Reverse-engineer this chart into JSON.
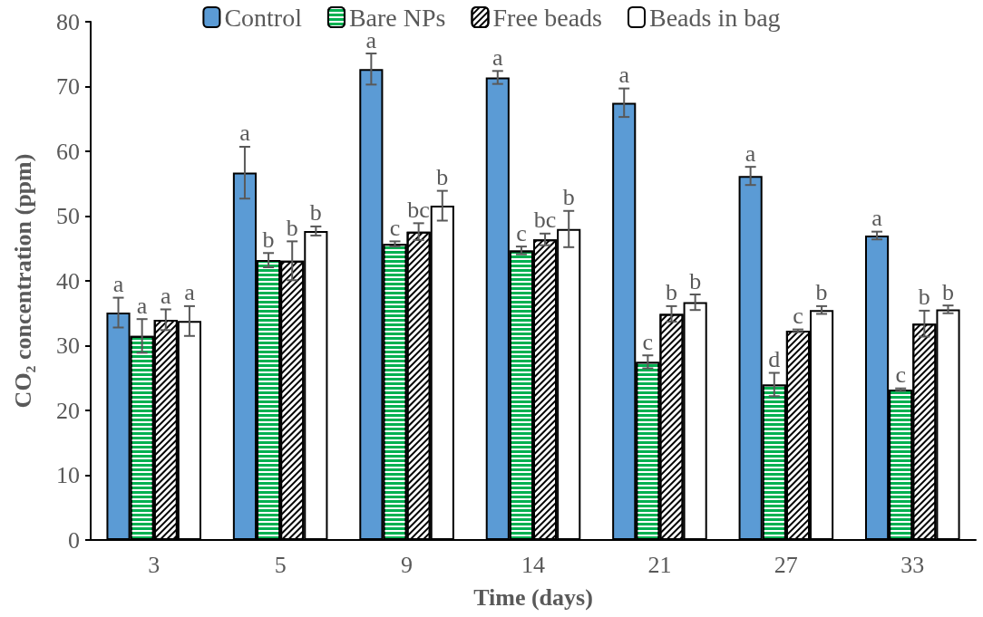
{
  "chart_data": {
    "type": "bar",
    "xlabel": "Time (days)",
    "ylabel": "CO₂ concentration (ppm)",
    "categories": [
      "3",
      "5",
      "9",
      "14",
      "21",
      "27",
      "33"
    ],
    "series": [
      {
        "name": "Control",
        "color": "#5b9bd5",
        "values": [
          35.1,
          56.7,
          72.7,
          71.4,
          67.5,
          56.2,
          47.0
        ],
        "errors": [
          2.3,
          4.0,
          2.4,
          1.0,
          2.2,
          1.4,
          0.6
        ],
        "value_labels": [
          "a",
          "a",
          "a",
          "a",
          "a",
          "a",
          "a"
        ]
      },
      {
        "name": "Bare NPs",
        "color": "#00b050",
        "values": [
          31.5,
          43.2,
          45.7,
          44.7,
          27.5,
          24.0,
          23.2
        ],
        "errors": [
          2.6,
          1.1,
          0.4,
          0.6,
          1.0,
          1.8,
          0.2
        ],
        "value_labels": [
          "a",
          "b",
          "c",
          "c",
          "c",
          "d",
          "c"
        ]
      },
      {
        "name": "Free beads",
        "color": "#000000",
        "values": [
          34.0,
          43.1,
          47.6,
          46.4,
          34.9,
          32.3,
          33.4
        ],
        "errors": [
          1.6,
          3.0,
          1.3,
          0.9,
          1.2,
          0.2,
          2.0
        ],
        "value_labels": [
          "a",
          "b",
          "bc",
          "bc",
          "b",
          "c",
          "b"
        ]
      },
      {
        "name": "Beads in bag",
        "color": "#ffffff",
        "values": [
          33.8,
          47.7,
          51.6,
          48.0,
          36.7,
          35.5,
          35.6
        ],
        "errors": [
          2.3,
          0.7,
          2.3,
          2.8,
          1.2,
          0.6,
          0.6
        ],
        "value_labels": [
          "a",
          "b",
          "b",
          "b",
          "b",
          "b",
          "b"
        ]
      }
    ],
    "ylim": [
      0,
      80
    ],
    "yticks": [
      0,
      10,
      20,
      30,
      40,
      50,
      60,
      70,
      80
    ],
    "grid": false,
    "legend": "top"
  }
}
